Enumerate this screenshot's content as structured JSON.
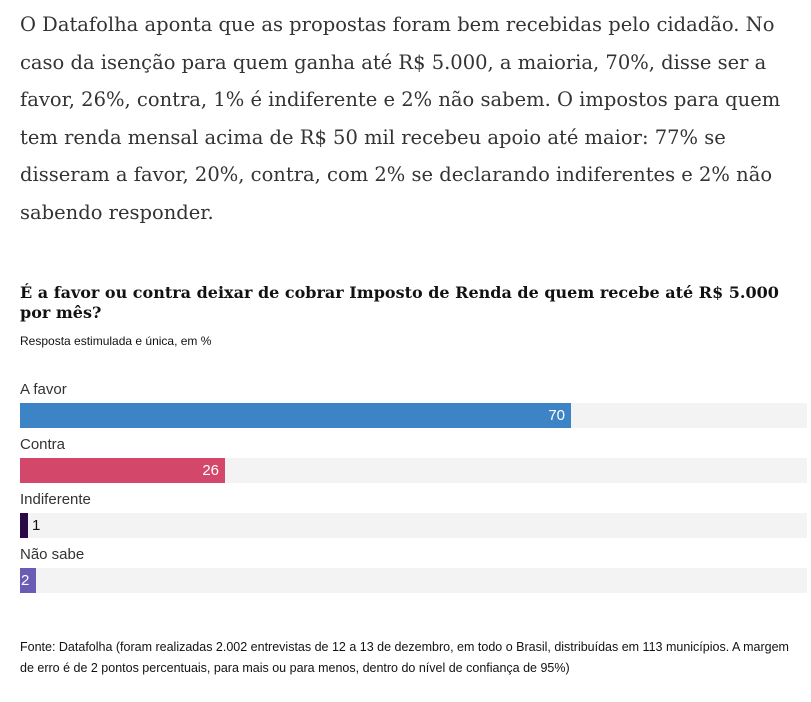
{
  "article": {
    "paragraph": "O Datafolha aponta que as propostas foram bem recebidas pelo cidadão. No caso da isenção para quem ganha até R$ 5.000, a maioria, 70%, disse ser a favor, 26%, contra, 1% é indiferente e 2% não sabem. O impostos para quem tem renda mensal acima de R$ 50 mil recebeu apoio até maior: 77% se disseram a favor, 20%, contra, com 2% se declarando indiferentes e 2% não sabendo responder."
  },
  "chart_data": {
    "type": "bar",
    "orientation": "horizontal",
    "title": "É a favor ou contra deixar de cobrar Imposto de Renda de quem recebe até R$ 5.000 por mês?",
    "subtitle": "Resposta estimulada e única, em %",
    "categories": [
      "A favor",
      "Contra",
      "Indiferente",
      "Não sabe"
    ],
    "values": [
      70,
      26,
      1,
      2
    ],
    "xlim": [
      0,
      100
    ],
    "colors": [
      "#3d84c6",
      "#d3476a",
      "#2a0a45",
      "#6a5bb5"
    ],
    "grid": false,
    "legend": "none"
  },
  "footnote": "Fonte: Datafolha (foram realizadas 2.002 entrevistas de 12 a 13 de dezembro, em todo o Brasil, distribuídas em 113 municípios. A margem de erro é de 2 pontos percentuais, para mais ou para menos, dentro do nível de confiança de 95%)"
}
